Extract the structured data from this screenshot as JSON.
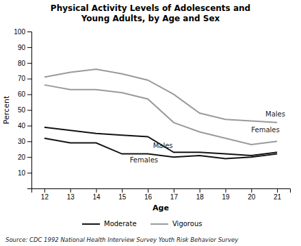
{
  "chart_data": {
    "type": "line",
    "title": "Physical Activity Levels of Adolescents and\nYoung Adults, by Age and Sex",
    "x_label": "Age",
    "y_label": "Percent",
    "source": "Source:  CDC 1992 National Health Interview Survey Youth Risk Behavior Survey",
    "x": [
      12,
      13,
      14,
      15,
      16,
      17,
      18,
      19,
      20,
      21
    ],
    "xlim": [
      11.5,
      21.5
    ],
    "xticks": [
      12,
      13,
      14,
      15,
      16,
      17,
      18,
      19,
      20,
      21
    ],
    "ylim": [
      0,
      100
    ],
    "yticks": [
      10,
      20,
      30,
      40,
      50,
      60,
      70,
      80,
      90,
      100
    ],
    "grid": false,
    "legend": "bottom",
    "series": [
      {
        "name": "Vigorous",
        "color": "#999999",
        "values": [
          71,
          74,
          76,
          73,
          69,
          60,
          48,
          44,
          43,
          42
        ]
      },
      {
        "name": "Vigorous",
        "color": "#999999",
        "values": [
          66,
          63,
          63,
          61,
          57,
          42,
          36,
          32,
          28,
          30
        ]
      },
      {
        "name": "Moderate",
        "color": "#111111",
        "values": [
          39,
          37,
          35,
          34,
          33,
          23,
          23,
          22,
          21,
          23
        ]
      },
      {
        "name": "Moderate",
        "color": "#111111",
        "values": [
          32,
          29,
          29,
          22,
          22,
          20,
          21,
          19,
          20,
          22
        ]
      }
    ],
    "annotations": [
      {
        "text": "Males",
        "x": 20.55,
        "y": 47
      },
      {
        "text": "Females",
        "x": 20.0,
        "y": 37
      },
      {
        "text": "Males",
        "x": 16.2,
        "y": 27
      },
      {
        "text": "Females",
        "x": 15.3,
        "y": 18
      }
    ]
  }
}
